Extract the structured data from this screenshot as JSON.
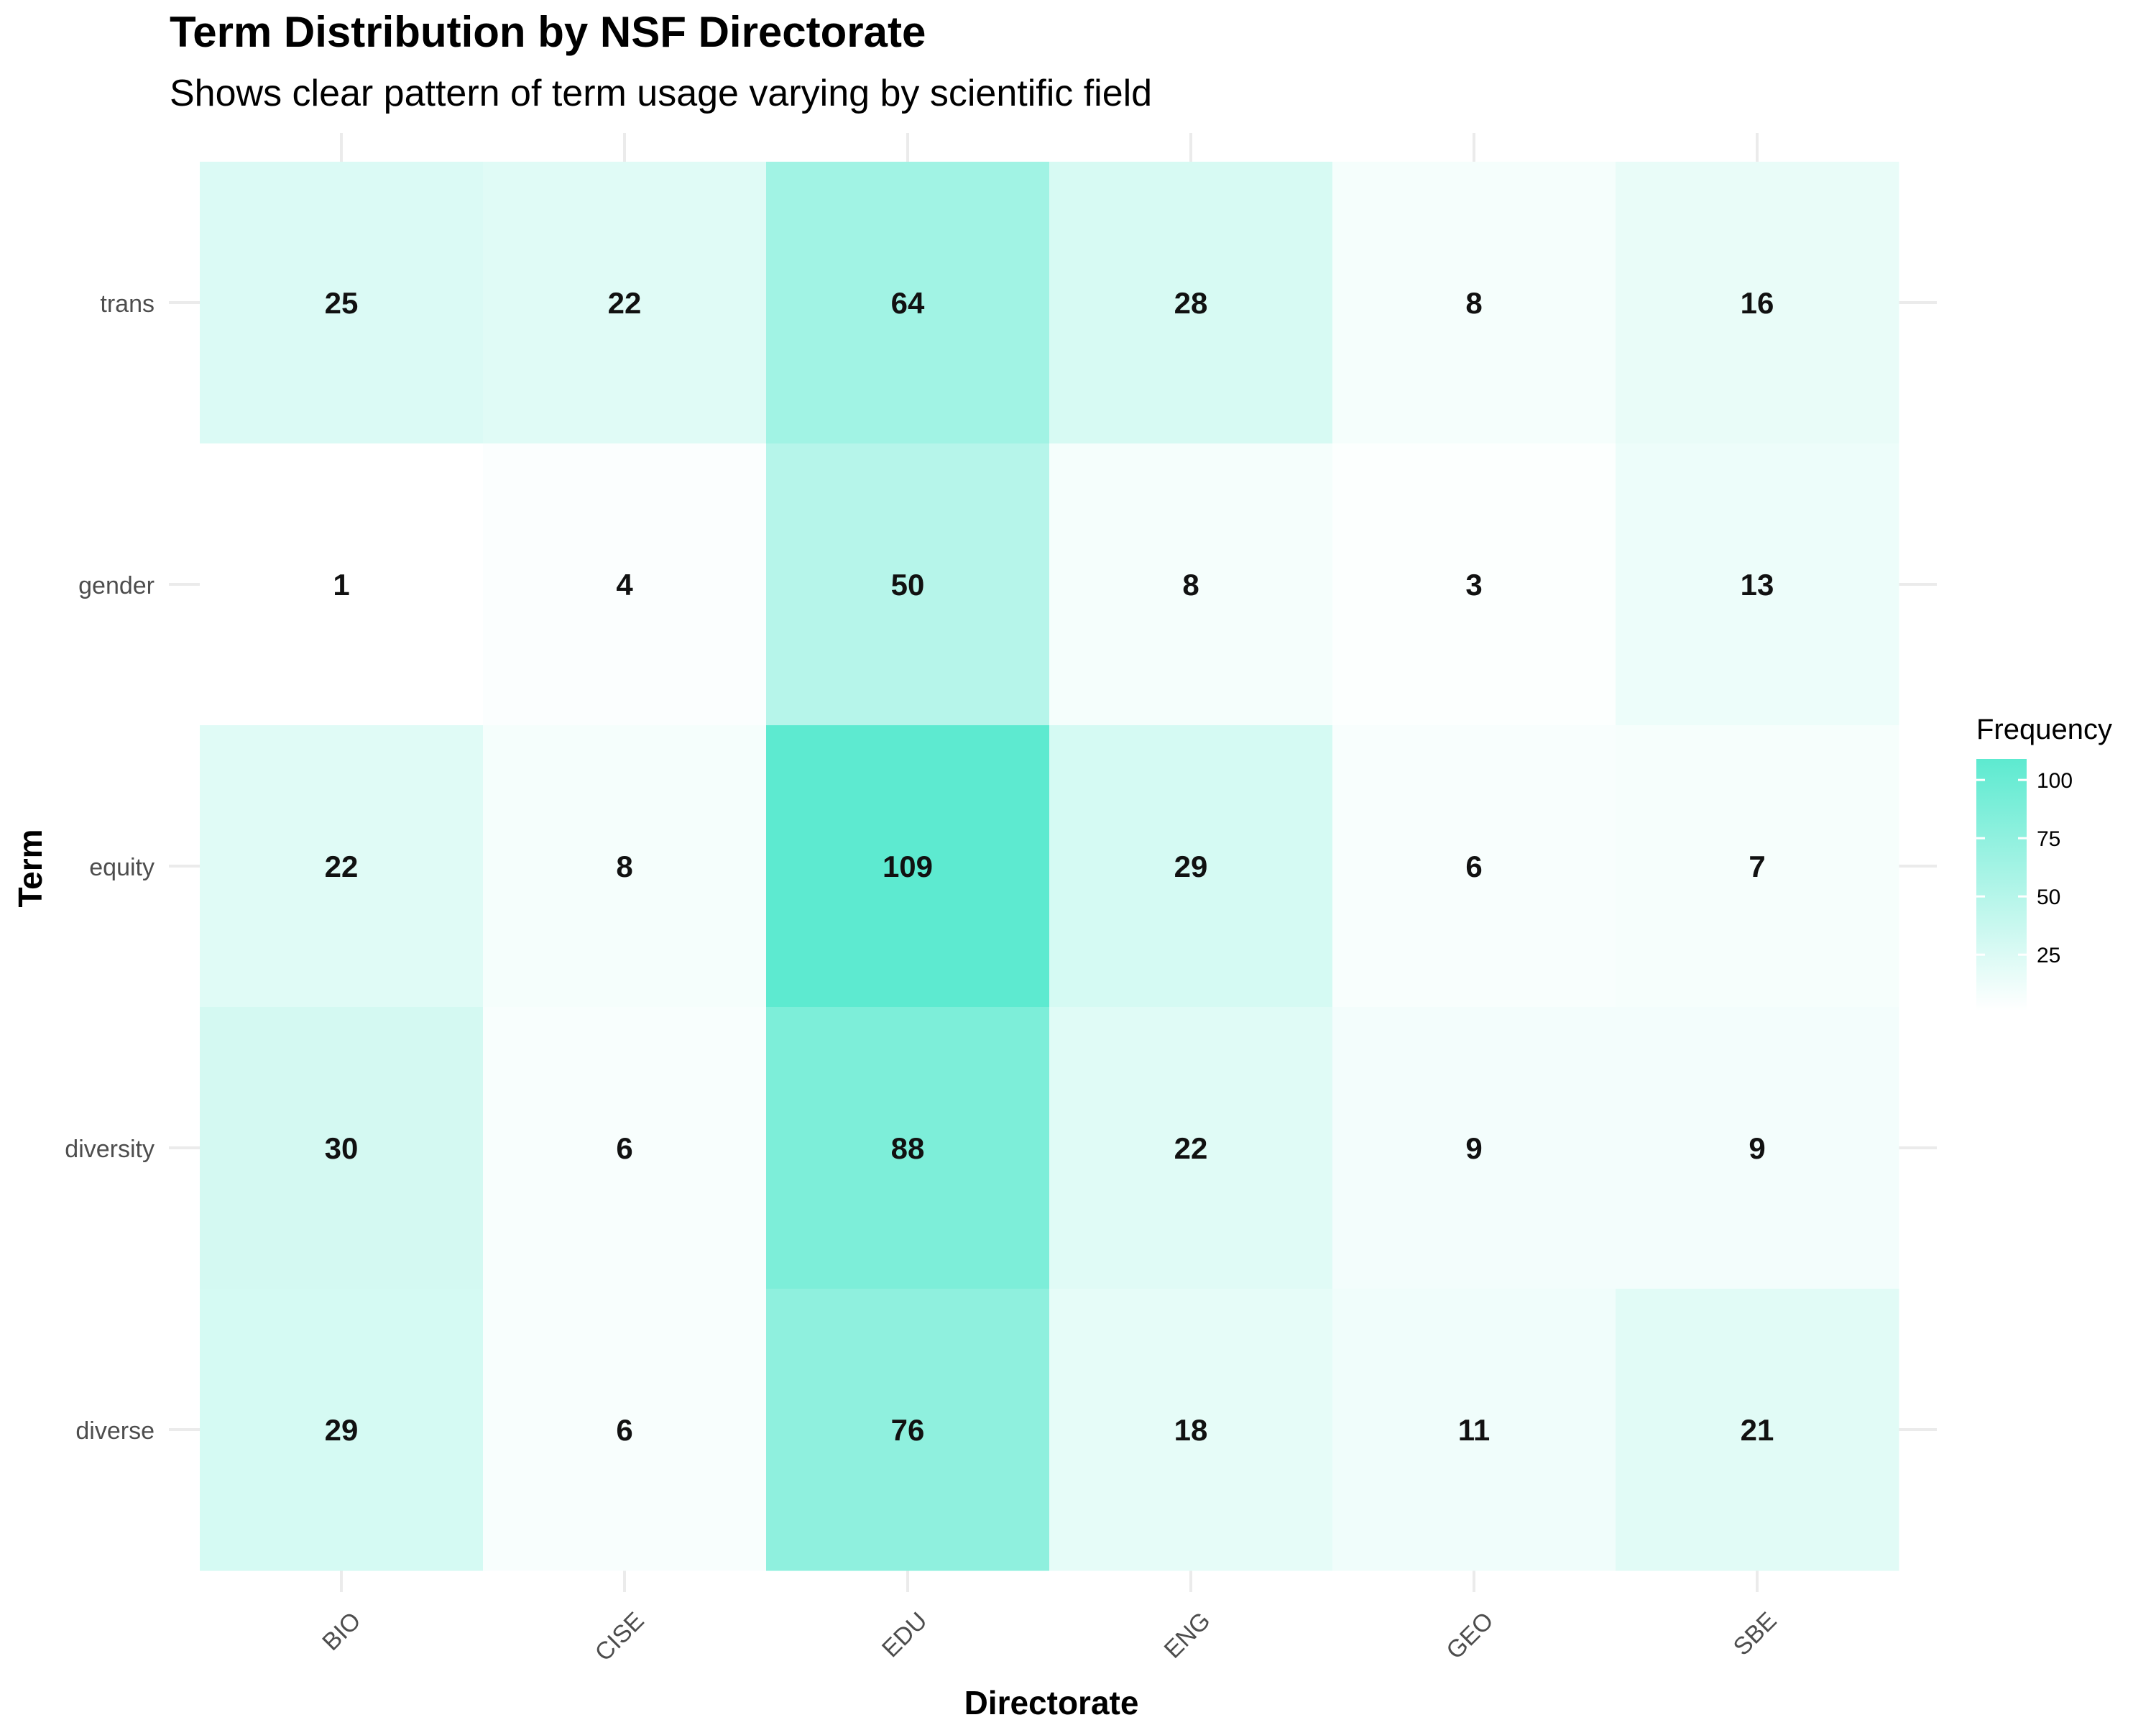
{
  "chart_data": {
    "type": "heatmap",
    "title": "Term Distribution by NSF Directorate",
    "subtitle": "Shows clear pattern of term usage varying by scientific field",
    "xlabel": "Directorate",
    "ylabel": "Term",
    "x_categories": [
      "BIO",
      "CISE",
      "EDU",
      "ENG",
      "GEO",
      "SBE"
    ],
    "y_categories": [
      "trans",
      "gender",
      "equity",
      "diversity",
      "diverse"
    ],
    "values": [
      [
        25,
        22,
        64,
        28,
        8,
        16
      ],
      [
        1,
        4,
        50,
        8,
        3,
        13
      ],
      [
        22,
        8,
        109,
        29,
        6,
        7
      ],
      [
        30,
        6,
        88,
        22,
        9,
        9
      ],
      [
        29,
        6,
        76,
        18,
        11,
        21
      ]
    ],
    "color_low": "#ffffff",
    "color_high": "#5dead0",
    "color_range": [
      1,
      109
    ],
    "legend": {
      "title": "Frequency",
      "ticks": [
        25,
        50,
        75,
        100
      ],
      "position": "right"
    },
    "grid": true,
    "x_tick_rotation": "45 degrees"
  }
}
